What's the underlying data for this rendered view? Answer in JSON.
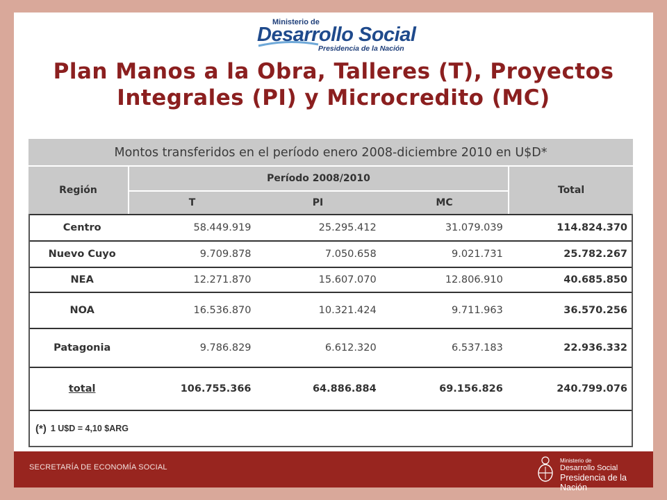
{
  "logo": {
    "ministerio": "Ministerio de",
    "desarrollo": "Desarrollo Social",
    "presidencia": "Presidencia de la Nación"
  },
  "title": {
    "line1": "Plan Manos a la Obra, Talleres (T), Proyectos",
    "line2": "Integrales (PI) y Microcredito (MC)"
  },
  "table": {
    "caption": "Montos transferidos en el período enero 2008-diciembre 2010 en U$D*",
    "header_region": "Región",
    "header_periodo": "Período 2008/2010",
    "header_total": "Total",
    "sub_headers": [
      "T",
      "PI",
      "MC"
    ],
    "rows": [
      {
        "region": "Centro",
        "t": "58.449.919",
        "pi": "25.295.412",
        "mc": "31.079.039",
        "total": "114.824.370"
      },
      {
        "region": "Nuevo Cuyo",
        "t": "9.709.878",
        "pi": "7.050.658",
        "mc": "9.021.731",
        "total": "25.782.267"
      },
      {
        "region": "NEA",
        "t": "12.271.870",
        "pi": "15.607.070",
        "mc": "12.806.910",
        "total": "40.685.850"
      },
      {
        "region": "NOA",
        "t": "16.536.870",
        "pi": "10.321.424",
        "mc": "9.711.963",
        "total": "36.570.256"
      },
      {
        "region": "Patagonia",
        "t": "9.786.829",
        "pi": "6.612.320",
        "mc": "6.537.183",
        "total": "22.936.332"
      },
      {
        "region": "total",
        "t": "106.755.366",
        "pi": "64.886.884",
        "mc": "69.156.826",
        "total": "240.799.076"
      }
    ],
    "note_star": "(*)",
    "note_text": "1 U$D = 4,10 $ARG"
  },
  "footer": {
    "left": "SECRETARÍA DE ECONOMÍA SOCIAL",
    "right_line1": "Ministerio de",
    "right_line2": "Desarrollo Social",
    "right_line3": "Presidencia de la Nación"
  },
  "colors": {
    "border_pink": "#d9a89a",
    "title_red": "#8b1f1f",
    "footer_red": "#98251f",
    "header_gray": "#c9c9c9",
    "logo_blue": "#1f4a8c"
  }
}
